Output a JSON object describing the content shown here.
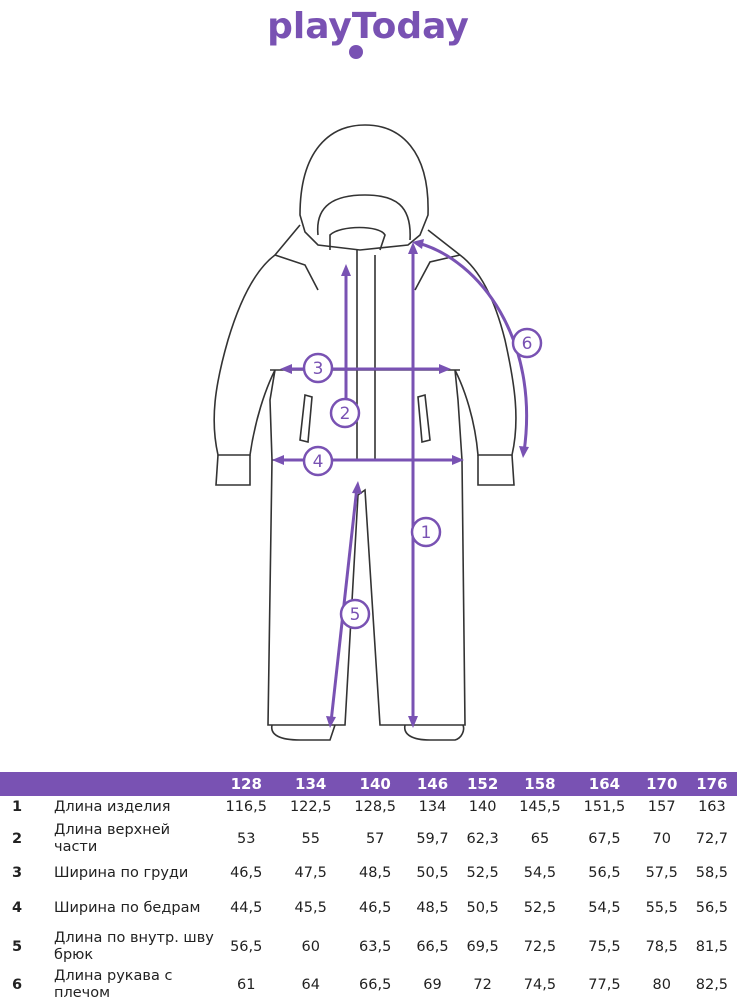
{
  "brand": {
    "logo_text": "playToday",
    "color": "#7952b3"
  },
  "diagram": {
    "markers": [
      "1",
      "2",
      "3",
      "4",
      "5",
      "6"
    ],
    "line_color": "#7952b3"
  },
  "table": {
    "sizes": [
      "128",
      "134",
      "140",
      "146",
      "152",
      "158",
      "164",
      "170",
      "176"
    ],
    "rows": [
      {
        "num": "1",
        "label": "Длина изделия",
        "values": [
          "116,5",
          "122,5",
          "128,5",
          "134",
          "140",
          "145,5",
          "151,5",
          "157",
          "163"
        ]
      },
      {
        "num": "2",
        "label": "Длина верхней части",
        "values": [
          "53",
          "55",
          "57",
          "59,7",
          "62,3",
          "65",
          "67,5",
          "70",
          "72,7"
        ]
      },
      {
        "num": "3",
        "label": "Ширина по груди",
        "values": [
          "46,5",
          "47,5",
          "48,5",
          "50,5",
          "52,5",
          "54,5",
          "56,5",
          "57,5",
          "58,5"
        ]
      },
      {
        "num": "4",
        "label": "Ширина по бедрам",
        "values": [
          "44,5",
          "45,5",
          "46,5",
          "48,5",
          "50,5",
          "52,5",
          "54,5",
          "55,5",
          "56,5"
        ]
      },
      {
        "num": "5",
        "label": "Длина по внутр. шву брюк",
        "values": [
          "56,5",
          "60",
          "63,5",
          "66,5",
          "69,5",
          "72,5",
          "75,5",
          "78,5",
          "81,5"
        ]
      },
      {
        "num": "6",
        "label": "Длина рукава с плечом",
        "values": [
          "61",
          "64",
          "66,5",
          "69",
          "72",
          "74,5",
          "77,5",
          "80",
          "82,5"
        ]
      }
    ]
  }
}
